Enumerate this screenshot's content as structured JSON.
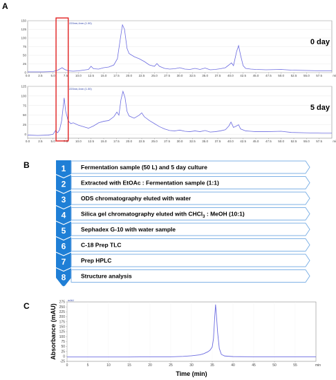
{
  "panels": {
    "a": "A",
    "b": "B",
    "c": "C"
  },
  "chart_data": [
    {
      "type": "line",
      "panel": "A",
      "label": "0 day",
      "header": "220nm,4nm (1.00)",
      "xlim": [
        0,
        60
      ],
      "ylim": [
        0,
        150
      ],
      "x_ticks": [
        "0.0",
        "2.5",
        "5.0",
        "7.5",
        "10.0",
        "12.5",
        "15.0",
        "17.5",
        "20.0",
        "22.5",
        "25.0",
        "27.5",
        "30.0",
        "32.5",
        "35.0",
        "37.5",
        "40.0",
        "42.5",
        "45.0",
        "47.5",
        "50.0",
        "52.5",
        "55.0",
        "57.5",
        "min"
      ],
      "y_ticks": [
        "0",
        "25",
        "50",
        "75",
        "100",
        "125",
        "150"
      ],
      "highlight_box_x": [
        5.6,
        8.0
      ],
      "points": [
        [
          0,
          2
        ],
        [
          3,
          2
        ],
        [
          5,
          3
        ],
        [
          5.8,
          6
        ],
        [
          6.2,
          9
        ],
        [
          6.8,
          14
        ],
        [
          7.3,
          9
        ],
        [
          8,
          5
        ],
        [
          9,
          4
        ],
        [
          10,
          5
        ],
        [
          11,
          7
        ],
        [
          12,
          9
        ],
        [
          12.5,
          18
        ],
        [
          13,
          11
        ],
        [
          14,
          10
        ],
        [
          15,
          14
        ],
        [
          16,
          16
        ],
        [
          17,
          22
        ],
        [
          17.7,
          40
        ],
        [
          18.3,
          100
        ],
        [
          18.7,
          138
        ],
        [
          19.1,
          125
        ],
        [
          19.6,
          70
        ],
        [
          20,
          55
        ],
        [
          21,
          46
        ],
        [
          22,
          40
        ],
        [
          23,
          32
        ],
        [
          24,
          22
        ],
        [
          25,
          18
        ],
        [
          25.5,
          26
        ],
        [
          26,
          18
        ],
        [
          27,
          12
        ],
        [
          28,
          10
        ],
        [
          29,
          11
        ],
        [
          30,
          14
        ],
        [
          31,
          10
        ],
        [
          32,
          9
        ],
        [
          33,
          12
        ],
        [
          34,
          9
        ],
        [
          35,
          13
        ],
        [
          36,
          8
        ],
        [
          37,
          9
        ],
        [
          38,
          11
        ],
        [
          39,
          14
        ],
        [
          39.7,
          22
        ],
        [
          40.2,
          28
        ],
        [
          40.6,
          20
        ],
        [
          41.2,
          60
        ],
        [
          41.6,
          78
        ],
        [
          42,
          50
        ],
        [
          42.5,
          20
        ],
        [
          43,
          12
        ],
        [
          44,
          10
        ],
        [
          45,
          9
        ],
        [
          47,
          8
        ],
        [
          50,
          9
        ],
        [
          52,
          7
        ],
        [
          55,
          6
        ],
        [
          58,
          5
        ],
        [
          60,
          5
        ]
      ]
    },
    {
      "type": "line",
      "panel": "A",
      "label": "5 day",
      "header": "220nm,4nm (1.00)",
      "xlim": [
        0,
        60
      ],
      "ylim": [
        -10,
        125
      ],
      "x_ticks": [
        "0.0",
        "2.5",
        "5.0",
        "7.5",
        "10.0",
        "12.5",
        "15.0",
        "17.5",
        "20.0",
        "22.5",
        "25.0",
        "27.5",
        "30.0",
        "32.5",
        "35.0",
        "37.5",
        "40.0",
        "42.5",
        "45.0",
        "47.5",
        "50.0",
        "52.5",
        "55.0",
        "57.5",
        "min"
      ],
      "y_ticks": [
        "0",
        "25",
        "50",
        "75",
        "100",
        "125"
      ],
      "highlight_box_x": [
        5.6,
        8.0
      ],
      "points": [
        [
          0,
          -2
        ],
        [
          2,
          -3
        ],
        [
          4,
          -2
        ],
        [
          5,
          0
        ],
        [
          5.5,
          10
        ],
        [
          5.9,
          4
        ],
        [
          6.3,
          12
        ],
        [
          6.7,
          35
        ],
        [
          7,
          70
        ],
        [
          7.2,
          95
        ],
        [
          7.5,
          60
        ],
        [
          8,
          35
        ],
        [
          8.5,
          28
        ],
        [
          9,
          30
        ],
        [
          10,
          24
        ],
        [
          11,
          20
        ],
        [
          12,
          16
        ],
        [
          13,
          22
        ],
        [
          14,
          30
        ],
        [
          15,
          34
        ],
        [
          16,
          36
        ],
        [
          17,
          46
        ],
        [
          17.6,
          58
        ],
        [
          18,
          50
        ],
        [
          18.4,
          90
        ],
        [
          18.8,
          112
        ],
        [
          19.2,
          96
        ],
        [
          19.6,
          60
        ],
        [
          20,
          48
        ],
        [
          21,
          42
        ],
        [
          22,
          50
        ],
        [
          22.5,
          56
        ],
        [
          23,
          46
        ],
        [
          24,
          36
        ],
        [
          25,
          28
        ],
        [
          26,
          20
        ],
        [
          27,
          14
        ],
        [
          28,
          10
        ],
        [
          29,
          9
        ],
        [
          30,
          11
        ],
        [
          31,
          8
        ],
        [
          32,
          7
        ],
        [
          33,
          9
        ],
        [
          34,
          7
        ],
        [
          35,
          10
        ],
        [
          36,
          6
        ],
        [
          37,
          7
        ],
        [
          38,
          9
        ],
        [
          39,
          12
        ],
        [
          39.7,
          22
        ],
        [
          40.1,
          32
        ],
        [
          40.6,
          18
        ],
        [
          41.2,
          22
        ],
        [
          41.6,
          25
        ],
        [
          42,
          14
        ],
        [
          43,
          9
        ],
        [
          44,
          8
        ],
        [
          45,
          7
        ],
        [
          47,
          7
        ],
        [
          50,
          8
        ],
        [
          52,
          5
        ],
        [
          55,
          4
        ],
        [
          58,
          3
        ],
        [
          60,
          3
        ]
      ]
    },
    {
      "type": "line",
      "panel": "C",
      "header": "mAU",
      "xlabel": "Time (min)",
      "ylabel": "Absorbance (mAU)",
      "xlim": [
        0,
        60
      ],
      "ylim": [
        -25,
        275
      ],
      "x_ticks": [
        "0",
        "5",
        "10",
        "15",
        "20",
        "25",
        "30",
        "35",
        "40",
        "45",
        "50",
        "55",
        "min"
      ],
      "y_ticks": [
        "-25",
        "0",
        "25",
        "50",
        "75",
        "100",
        "125",
        "150",
        "175",
        "200",
        "225",
        "250",
        "275"
      ],
      "points": [
        [
          0,
          -3
        ],
        [
          5,
          -3
        ],
        [
          10,
          -3
        ],
        [
          15,
          -3
        ],
        [
          20,
          -2
        ],
        [
          25,
          -2
        ],
        [
          28,
          0
        ],
        [
          30,
          3
        ],
        [
          32,
          8
        ],
        [
          33,
          14
        ],
        [
          34,
          24
        ],
        [
          34.5,
          32
        ],
        [
          35,
          48
        ],
        [
          35.3,
          90
        ],
        [
          35.6,
          200
        ],
        [
          35.8,
          262
        ],
        [
          36,
          210
        ],
        [
          36.3,
          120
        ],
        [
          36.7,
          40
        ],
        [
          37.2,
          10
        ],
        [
          38,
          2
        ],
        [
          40,
          -1
        ],
        [
          45,
          -2
        ],
        [
          50,
          -2
        ],
        [
          55,
          -2
        ],
        [
          60,
          -2
        ]
      ]
    }
  ],
  "steps": [
    {
      "num": "1",
      "text": "Fermentation sample (50 L) and 5 day culture"
    },
    {
      "num": "2",
      "text": "Extracted with EtOAc : Fermentation sample (1:1)"
    },
    {
      "num": "3",
      "text": "ODS chromatography eluted with water"
    },
    {
      "num": "4",
      "text_pre": "Silica gel chromatography eluted with CHCl",
      "text_sub": "3",
      "text_post": " : MeOH (10:1)"
    },
    {
      "num": "5",
      "text": "Sephadex G-10 with water sample"
    },
    {
      "num": "6",
      "text": "C-18 Prep TLC"
    },
    {
      "num": "7",
      "text": "Prep HPLC"
    },
    {
      "num": "8",
      "text": "Structure analysis"
    }
  ],
  "colors": {
    "trace": "#6a6ae0",
    "box": "#e02020",
    "chevron": "#1f7fd6",
    "arrow_border": "#7fb2e6",
    "grid": "#e2e2e2"
  }
}
